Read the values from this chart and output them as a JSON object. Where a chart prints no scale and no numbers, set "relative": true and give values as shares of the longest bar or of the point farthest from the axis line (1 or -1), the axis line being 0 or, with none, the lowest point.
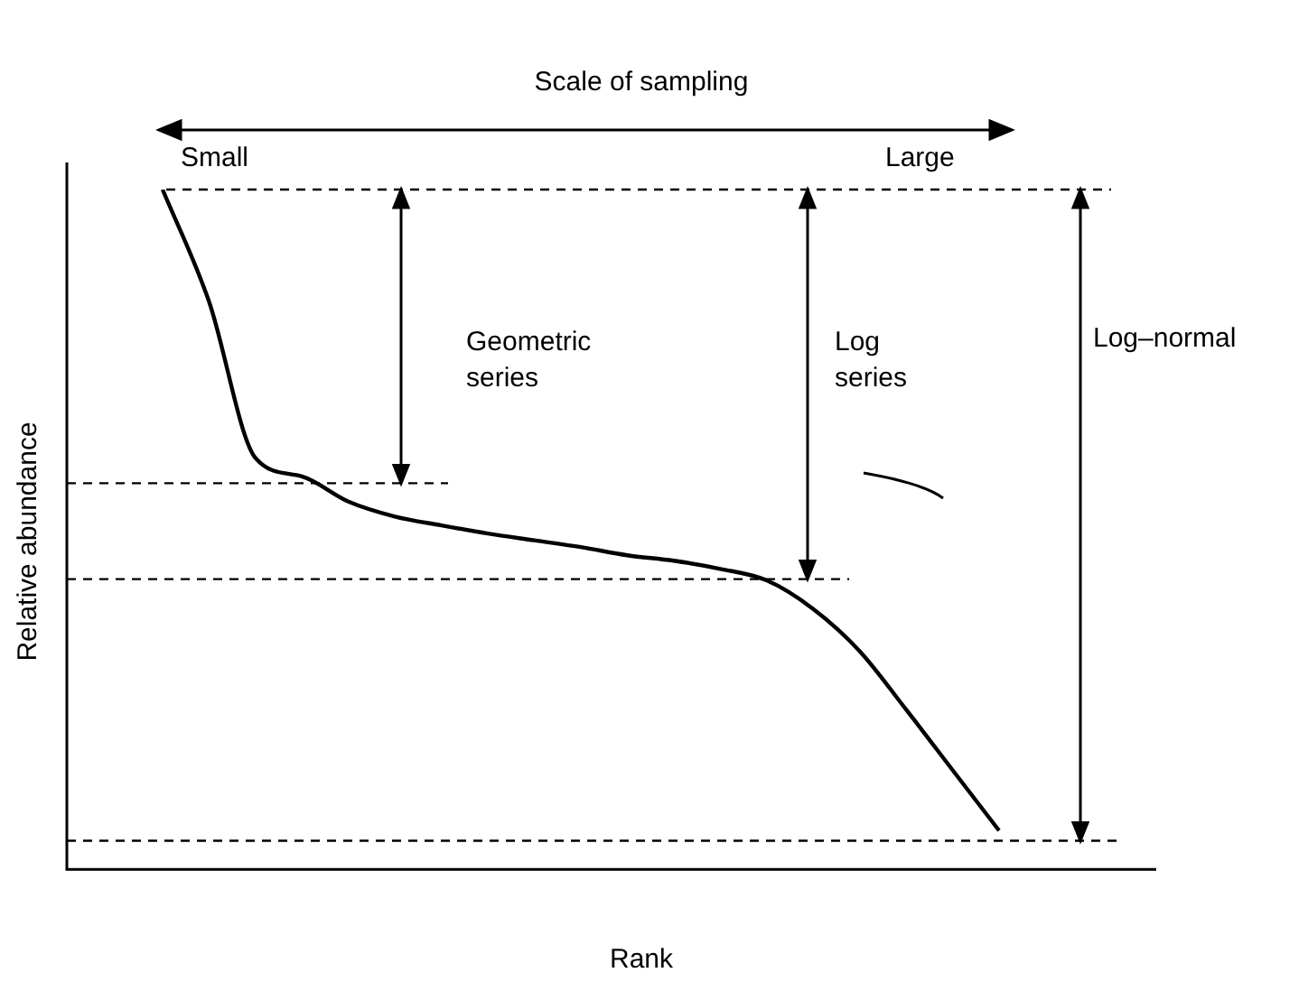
{
  "chart_data": {
    "type": "line",
    "title": "Scale of sampling",
    "xlabel": "Rank",
    "ylabel": "Relative abundance",
    "relative": true,
    "legend": false,
    "marker": "none",
    "line_style": "solid",
    "grid": false,
    "categories": [
      null,
      null,
      null,
      null,
      null,
      null,
      null,
      null,
      null,
      null,
      null,
      null,
      null,
      null,
      null,
      null,
      null,
      null,
      null
    ],
    "series": [
      {
        "color": "#000000",
        "values": [
          1,
          0.835,
          0.605,
          0.578,
          0.541,
          0.519,
          0.506,
          0.494,
          0.484,
          0.474,
          0.462,
          0.454,
          0.442,
          0.425,
          0.383,
          0.321,
          0.235,
          0.146,
          0.057
        ]
      }
    ],
    "ref_lines": [
      {
        "axis": "y",
        "value": 1,
        "line_style": "dashed",
        "color": "#000000"
      },
      {
        "axis": "y",
        "value": 0.568,
        "line_style": "dashed",
        "color": "#000000"
      },
      {
        "axis": "y",
        "value": 0.427,
        "line_style": "dashed",
        "color": "#000000"
      },
      {
        "axis": "y",
        "value": 0.042,
        "line_style": "dashed",
        "color": "#000000"
      }
    ],
    "annotations": [
      "Small",
      "Large",
      "Geometric series",
      "Log series",
      "Log–normal"
    ]
  }
}
